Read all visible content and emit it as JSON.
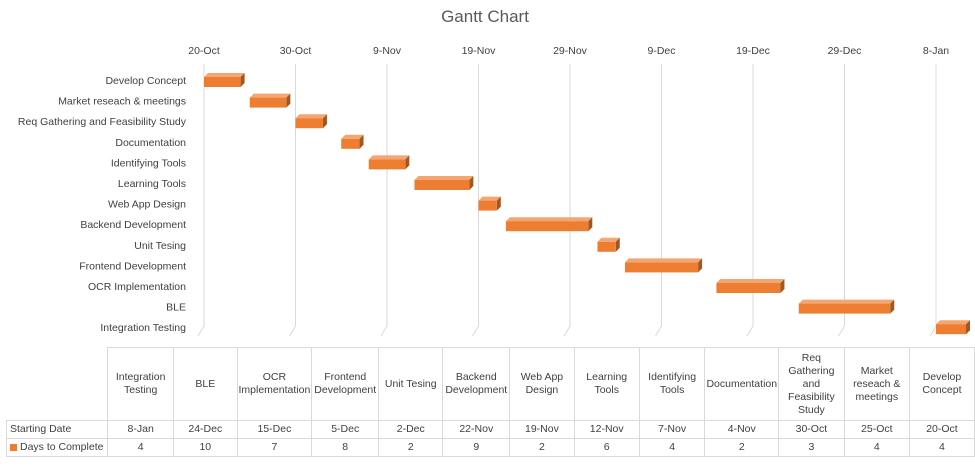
{
  "chart_data": {
    "type": "bar",
    "title": "Gantt Chart",
    "x_tick_labels": [
      "20-Oct",
      "30-Oct",
      "9-Nov",
      "19-Nov",
      "29-Nov",
      "9-Dec",
      "19-Dec",
      "29-Dec",
      "8-Jan"
    ],
    "tasks": [
      {
        "name": "Develop Concept",
        "start": "20-Oct",
        "days": 4
      },
      {
        "name": "Market reseach & meetings",
        "start": "25-Oct",
        "days": 4
      },
      {
        "name": "Req Gathering and Feasibility Study",
        "start": "30-Oct",
        "days": 3
      },
      {
        "name": "Documentation",
        "start": "4-Nov",
        "days": 2
      },
      {
        "name": "Identifying Tools ",
        "start": "7-Nov",
        "days": 4
      },
      {
        "name": "Learning Tools",
        "start": "12-Nov",
        "days": 6
      },
      {
        "name": "Web App Design",
        "start": "19-Nov",
        "days": 2
      },
      {
        "name": "Backend Development",
        "start": "22-Nov",
        "days": 9
      },
      {
        "name": "Unit Tesing",
        "start": "2-Dec",
        "days": 2
      },
      {
        "name": "Frontend Development",
        "start": "5-Dec",
        "days": 8
      },
      {
        "name": "OCR Implementation",
        "start": "15-Dec",
        "days": 7
      },
      {
        "name": "BLE",
        "start": "24-Dec",
        "days": 10
      },
      {
        "name": "Integration Testing",
        "start": "8-Jan",
        "days": 4
      }
    ],
    "series": [
      {
        "name": "Starting Date",
        "legend_key": false
      },
      {
        "name": "Days to Complete",
        "legend_key": true,
        "color": "#ed7d31"
      }
    ],
    "table": {
      "columns": [
        {
          "label": "Integration Testing",
          "start": "8-Jan",
          "days": "4"
        },
        {
          "label": "BLE",
          "start": "24-Dec",
          "days": "10"
        },
        {
          "label": "OCR Implementation",
          "start": "15-Dec",
          "days": "7"
        },
        {
          "label": "Frontend Development",
          "start": "5-Dec",
          "days": "8"
        },
        {
          "label": "Unit Tesing",
          "start": "2-Dec",
          "days": "2"
        },
        {
          "label": "Backend Development",
          "start": "22-Nov",
          "days": "9"
        },
        {
          "label": "Web App Design",
          "start": "19-Nov",
          "days": "2"
        },
        {
          "label": "Learning Tools",
          "start": "12-Nov",
          "days": "6"
        },
        {
          "label": "Identifying Tools",
          "start": "7-Nov",
          "days": "4"
        },
        {
          "label": "Documentation",
          "start": "4-Nov",
          "days": "2"
        },
        {
          "label": "Req Gathering and Feasibility Study",
          "start": "30-Oct",
          "days": "3"
        },
        {
          "label": "Market reseach & meetings",
          "start": "25-Oct",
          "days": "4"
        },
        {
          "label": "Develop Concept",
          "start": "20-Oct",
          "days": "4"
        }
      ]
    },
    "grid": true,
    "legend": "in data table"
  }
}
